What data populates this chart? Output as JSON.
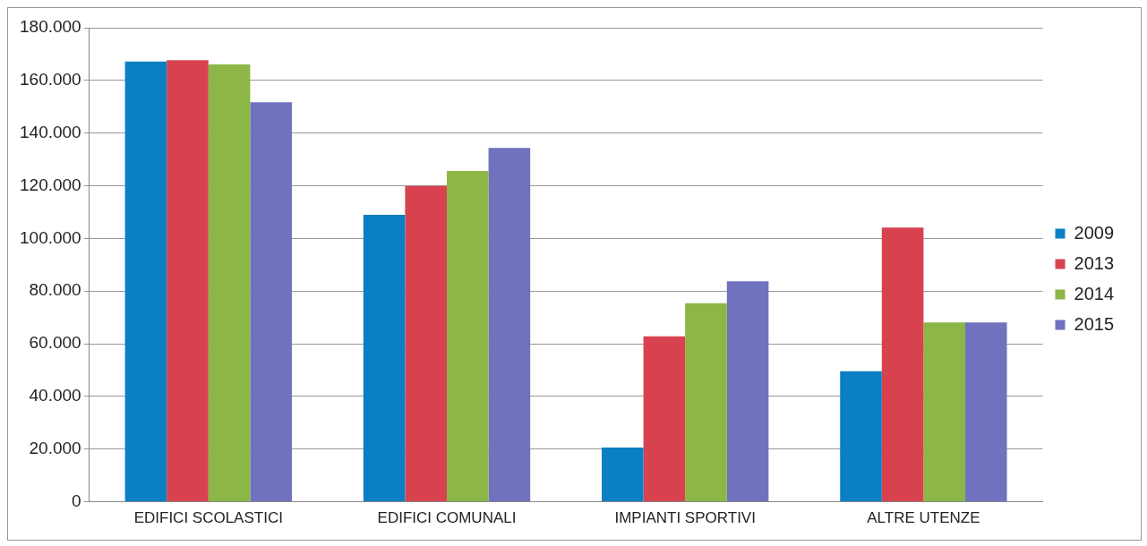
{
  "chart_data": {
    "type": "bar",
    "categories": [
      "EDIFICI SCOLASTICI",
      "EDIFICI COMUNALI",
      "IMPIANTI SPORTIVI",
      "ALTRE UTENZE"
    ],
    "series": [
      {
        "name": "2009",
        "color": "#0a7fc4",
        "values": [
          167200,
          109000,
          20600,
          49600
        ]
      },
      {
        "name": "2013",
        "color": "#d8424f",
        "values": [
          167700,
          119900,
          62800,
          104100
        ]
      },
      {
        "name": "2014",
        "color": "#8cb645",
        "values": [
          166100,
          125600,
          75400,
          68100
        ]
      },
      {
        "name": "2015",
        "color": "#7072c0",
        "values": [
          151700,
          134400,
          83700,
          68100
        ]
      }
    ],
    "ylim": [
      0,
      180000
    ],
    "yticks": [
      {
        "value": 0,
        "label": "0"
      },
      {
        "value": 20000,
        "label": "20.000"
      },
      {
        "value": 40000,
        "label": "40.000"
      },
      {
        "value": 60000,
        "label": "60.000"
      },
      {
        "value": 80000,
        "label": "80.000"
      },
      {
        "value": 100000,
        "label": "100.000"
      },
      {
        "value": 120000,
        "label": "120.000"
      },
      {
        "value": 140000,
        "label": "140.000"
      },
      {
        "value": 160000,
        "label": "160.000"
      },
      {
        "value": 180000,
        "label": "180.000"
      }
    ],
    "grid": "y",
    "legend": "right"
  }
}
